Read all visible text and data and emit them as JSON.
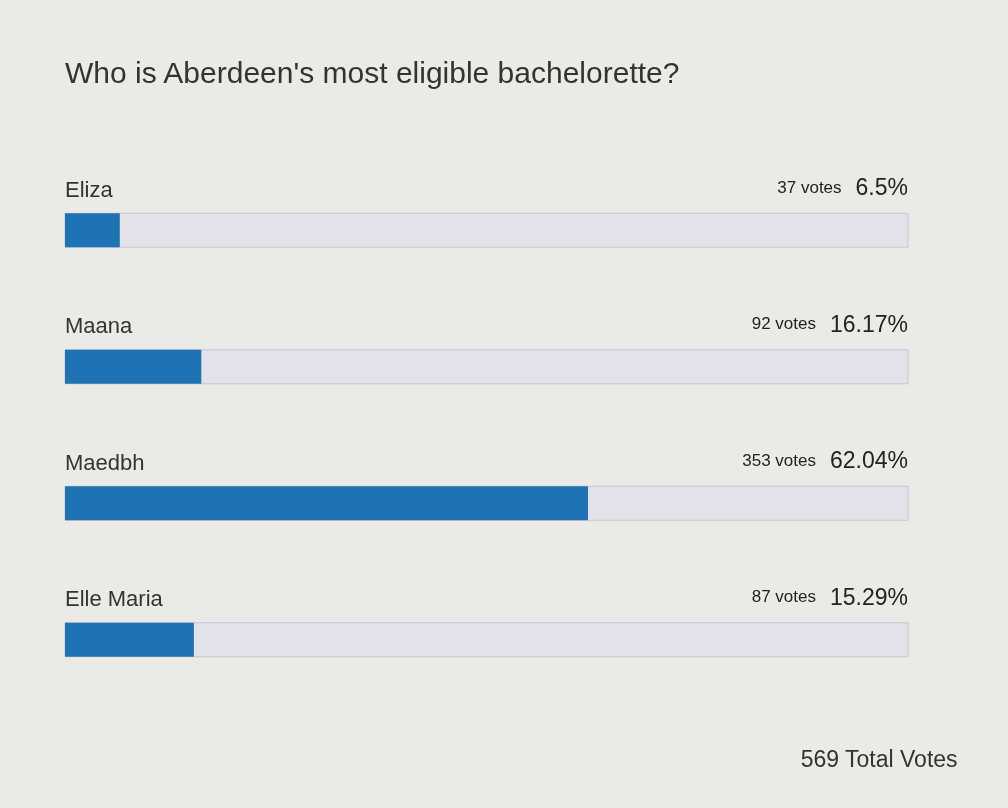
{
  "chart_data": {
    "type": "bar",
    "orientation": "horizontal",
    "title": "Who is Aberdeen's most eligible bachelorette?",
    "categories": [
      "Eliza",
      "Maana",
      "Maedbh",
      "Elle Maria"
    ],
    "values": [
      6.5,
      16.17,
      62.04,
      15.29
    ],
    "value_labels": [
      "6.5%",
      "16.17%",
      "62.04%",
      "15.29%"
    ],
    "color": "#1f73b3",
    "xlim": [
      0,
      100
    ],
    "tick_labels": "y",
    "grid": false,
    "annotations": [
      "37 votes",
      "92 votes",
      "353 votes",
      "87 votes",
      "569 Total Votes"
    ]
  }
}
